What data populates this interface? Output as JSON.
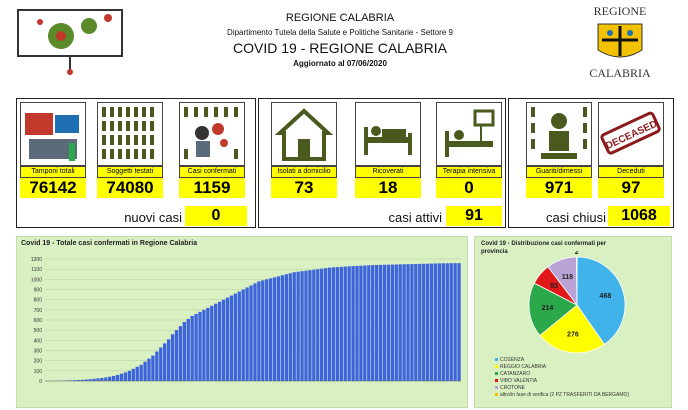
{
  "header": {
    "region": "REGIONE CALABRIA",
    "department": "Dipartimento Tutela della Salute e Politiche Sanitarie - Settore 9",
    "title": "COVID 19 - REGIONE CALABRIA",
    "updated": "Aggiornato al  07/06/2020",
    "logo_top": "REGIONE",
    "logo_bottom": "CALABRIA"
  },
  "tiles": [
    {
      "label": "Tamponi totali",
      "value": "76142"
    },
    {
      "label": "Soggetti testati",
      "value": "74080"
    },
    {
      "label": "Casi confermati",
      "value": "1159"
    },
    {
      "label": "Isolati a domicilio",
      "value": "73"
    },
    {
      "label": "Ricoverati",
      "value": "18"
    },
    {
      "label": "Terapia intensiva",
      "value": "0"
    },
    {
      "label": "Guariti/dimessi",
      "value": "971"
    },
    {
      "label": "Deceduti",
      "value": "97"
    }
  ],
  "summary": {
    "new_cases_label": "nuovi casi",
    "new_cases_value": "0",
    "active_label": "casi attivi",
    "active_value": "91",
    "closed_label": "casi chiusi",
    "closed_value": "1068"
  },
  "colors": {
    "yellow": "#ffff00",
    "panel": "#d9f0c2",
    "bar": "#3c64dc",
    "olive": "#4a5a1e"
  },
  "icons": [
    "virus-icon",
    "lab-icon",
    "people-icon",
    "doctor-icon",
    "house-icon",
    "bed-icon",
    "icu-icon",
    "recovered-icon",
    "deceased-stamp-icon"
  ],
  "deceased_stamp": "DECEASED",
  "chart_data": [
    {
      "type": "bar",
      "title": "Covid 19 - Totale casi confermati in Regione Calabria",
      "ylim": [
        0,
        1200
      ],
      "yticks": [
        0,
        100,
        200,
        300,
        400,
        500,
        600,
        700,
        800,
        900,
        1000,
        1100,
        1200
      ],
      "values": [
        1,
        1,
        1,
        2,
        3,
        5,
        6,
        8,
        10,
        12,
        15,
        18,
        22,
        26,
        30,
        35,
        42,
        50,
        60,
        72,
        85,
        100,
        120,
        140,
        160,
        190,
        220,
        250,
        290,
        330,
        370,
        410,
        460,
        500,
        540,
        580,
        610,
        640,
        660,
        680,
        700,
        720,
        740,
        760,
        780,
        800,
        820,
        840,
        860,
        880,
        900,
        920,
        940,
        960,
        980,
        990,
        1000,
        1010,
        1020,
        1030,
        1040,
        1050,
        1060,
        1070,
        1075,
        1080,
        1085,
        1090,
        1095,
        1100,
        1105,
        1110,
        1115,
        1118,
        1120,
        1123,
        1126,
        1128,
        1130,
        1132,
        1134,
        1136,
        1138,
        1140,
        1141,
        1142,
        1143,
        1144,
        1145,
        1146,
        1147,
        1148,
        1149,
        1150,
        1151,
        1152,
        1153,
        1154,
        1155,
        1156,
        1157,
        1158,
        1158,
        1159,
        1159,
        1159
      ]
    },
    {
      "type": "pie",
      "title": "Covid 19 - Distribuzione casi confermati per provincia",
      "slices": [
        {
          "name": "COSENZA",
          "value": 468,
          "color": "#3fb3ea"
        },
        {
          "name": "REGGIO CALABRIA",
          "value": 276,
          "color": "#ffff00"
        },
        {
          "name": "CATANZARO",
          "value": 214,
          "color": "#2aa84a"
        },
        {
          "name": "VIBO VALENTIA",
          "value": 83,
          "color": "#e01818"
        },
        {
          "name": "CROTONE",
          "value": 118,
          "color": "#b9a3d6"
        },
        {
          "name": "altro/in fase di verifica (2 PZ TRASFERITI DA BERGAMO)",
          "value": 2,
          "color": "#f2c200"
        }
      ]
    }
  ]
}
